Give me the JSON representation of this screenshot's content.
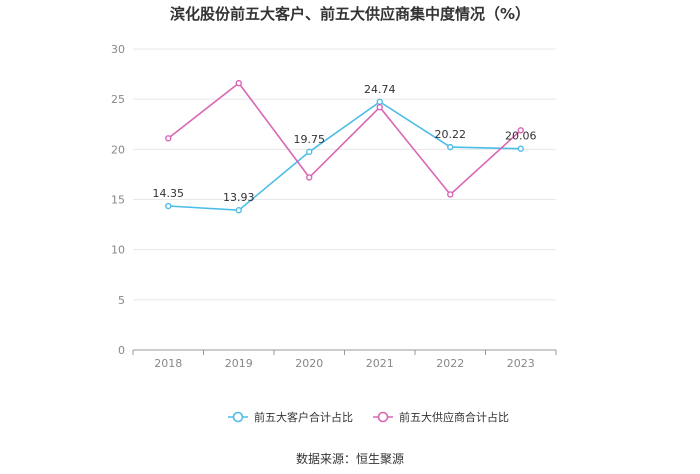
{
  "chart_data": {
    "type": "line",
    "title": "滨化股份前五大客户、前五大供应商集中度情况（%）",
    "categories": [
      "2018",
      "2019",
      "2020",
      "2021",
      "2022",
      "2023"
    ],
    "yticks": [
      "0",
      "5",
      "10",
      "15",
      "20",
      "25",
      "30"
    ],
    "ylim": [
      0,
      30
    ],
    "grid": true,
    "legend_position": "bottom",
    "series": [
      {
        "name": "前五大客户合计占比",
        "color": "#4dbde8",
        "values": [
          14.35,
          13.93,
          19.75,
          24.74,
          20.22,
          20.06
        ],
        "labels": [
          "14.35",
          "13.93",
          "19.75",
          "24.74",
          "20.22",
          "20.06"
        ]
      },
      {
        "name": "前五大供应商合计占比",
        "color": "#d966b5",
        "values": [
          21.1,
          26.6,
          17.2,
          24.2,
          15.5,
          21.9
        ]
      }
    ]
  },
  "source": "数据来源：恒生聚源"
}
